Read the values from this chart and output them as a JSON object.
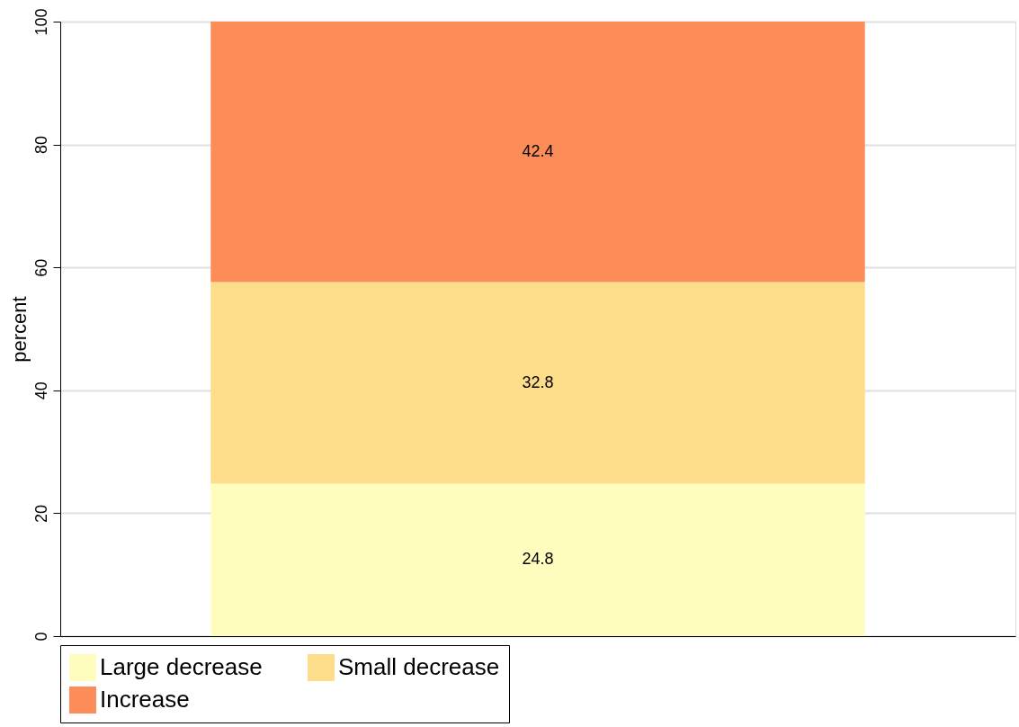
{
  "chart_data": {
    "type": "bar",
    "stacked": true,
    "categories": [
      null
    ],
    "ylabel": "percent",
    "series": [
      {
        "name": "Large decrease",
        "color": "#fefdbe",
        "values": [
          24.8
        ]
      },
      {
        "name": "Small decrease",
        "color": "#fddc8a",
        "values": [
          32.8
        ]
      },
      {
        "name": "Increase",
        "color": "#fc8d59",
        "values": [
          42.4
        ]
      }
    ],
    "ylim": [
      0,
      100
    ],
    "yticks": [
      0,
      20,
      40,
      60,
      80,
      100
    ],
    "grid": "y",
    "legend": "bottom",
    "data_labels": true
  }
}
